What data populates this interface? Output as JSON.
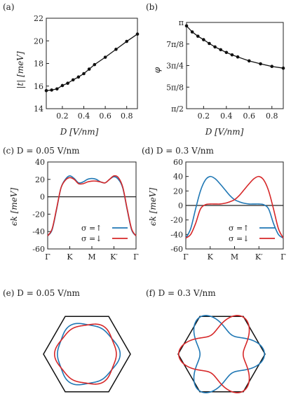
{
  "chart_data": [
    {
      "panel": "(a)",
      "type": "line",
      "title": "",
      "xlabel": "D [V/nm]",
      "ylabel": "|t| [meV]",
      "xlim": [
        0.05,
        0.9
      ],
      "ylim": [
        14,
        22
      ],
      "xticks": [
        "0.2",
        "0.4",
        "0.6",
        "0.8"
      ],
      "yticks": [
        "14",
        "16",
        "18",
        "20",
        "22"
      ],
      "grid": false,
      "x": [
        0.05,
        0.1,
        0.15,
        0.2,
        0.25,
        0.3,
        0.35,
        0.4,
        0.45,
        0.5,
        0.6,
        0.7,
        0.8,
        0.9
      ],
      "y": [
        15.6,
        15.65,
        15.75,
        16.05,
        16.25,
        16.55,
        16.8,
        17.1,
        17.5,
        17.9,
        18.55,
        19.25,
        19.95,
        20.6
      ]
    },
    {
      "panel": "(b)",
      "type": "line",
      "title": "",
      "xlabel": "D [V/nm]",
      "ylabel": "φ",
      "xlim": [
        0.05,
        0.9
      ],
      "ylim": [
        0.5,
        1.0
      ],
      "yunit": "π",
      "xticks": [
        "0.2",
        "0.4",
        "0.6",
        "0.8"
      ],
      "yticks": [
        "π/2",
        "5π/8",
        "3π/4",
        "7π/8",
        "π"
      ],
      "grid": false,
      "x": [
        0.05,
        0.1,
        0.15,
        0.2,
        0.25,
        0.3,
        0.35,
        0.4,
        0.45,
        0.5,
        0.6,
        0.7,
        0.8,
        0.9
      ],
      "y": [
        0.98,
        0.945,
        0.92,
        0.9,
        0.878,
        0.858,
        0.842,
        0.826,
        0.812,
        0.8,
        0.777,
        0.76,
        0.745,
        0.735
      ]
    },
    {
      "panel": "(c)",
      "type": "line",
      "title": "D = 0.05 V/nm",
      "xlabel": "",
      "ylabel": "ϵk [meV]",
      "ylim": [
        -60,
        40
      ],
      "xticks": [
        "Γ",
        "K",
        "M",
        "K′",
        "Γ"
      ],
      "yticks": [
        "-60",
        "-40",
        "-20",
        "0",
        "20",
        "40"
      ],
      "k_path": [
        0,
        0.25,
        0.5,
        0.75,
        1
      ],
      "legend": [
        "σ =↑",
        "σ =↓"
      ],
      "legend_position": "bottom-right",
      "series": [
        {
          "name": "σ =↑",
          "color": "#1f77b4",
          "x": [
            0,
            0.05,
            0.1,
            0.15,
            0.2,
            0.25,
            0.3,
            0.35,
            0.4,
            0.45,
            0.5,
            0.55,
            0.6,
            0.65,
            0.7,
            0.75,
            0.8,
            0.85,
            0.9,
            0.95,
            1
          ],
          "y": [
            -45,
            -38,
            -15,
            10,
            20,
            24,
            21,
            16,
            17,
            20,
            21,
            20,
            17,
            16,
            20,
            23,
            20,
            10,
            -15,
            -38,
            -45
          ]
        },
        {
          "name": "σ =↓",
          "color": "#d62728",
          "x": [
            0,
            0.05,
            0.1,
            0.15,
            0.2,
            0.25,
            0.3,
            0.35,
            0.4,
            0.45,
            0.5,
            0.55,
            0.6,
            0.65,
            0.7,
            0.75,
            0.8,
            0.85,
            0.9,
            0.95,
            1
          ],
          "y": [
            -45,
            -37,
            -14,
            10,
            19,
            22,
            20,
            15,
            15,
            17,
            18,
            18,
            17,
            16,
            20,
            24,
            22,
            11,
            -14,
            -37,
            -45
          ]
        }
      ]
    },
    {
      "panel": "(d)",
      "type": "line",
      "title": "D = 0.3 V/nm",
      "xlabel": "",
      "ylabel": "ϵk [meV]",
      "ylim": [
        -60,
        60
      ],
      "xticks": [
        "Γ",
        "K",
        "M",
        "K′",
        "Γ"
      ],
      "yticks": [
        "-60",
        "-40",
        "-20",
        "0",
        "20",
        "40",
        "60"
      ],
      "k_path": [
        0,
        0.25,
        0.5,
        0.75,
        1
      ],
      "legend": [
        "σ =↑",
        "σ =↓"
      ],
      "legend_position": "bottom-right",
      "series": [
        {
          "name": "σ =↑",
          "color": "#1f77b4",
          "x": [
            0,
            0.05,
            0.1,
            0.15,
            0.2,
            0.25,
            0.3,
            0.35,
            0.4,
            0.45,
            0.5,
            0.55,
            0.6,
            0.65,
            0.7,
            0.75,
            0.8,
            0.85,
            0.9,
            0.95,
            1
          ],
          "y": [
            -45,
            -32,
            -5,
            20,
            35,
            40,
            37,
            30,
            22,
            14,
            8,
            5,
            3,
            2,
            2,
            2,
            1,
            -5,
            -25,
            -40,
            -45
          ]
        },
        {
          "name": "σ =↓",
          "color": "#d62728",
          "x": [
            0,
            0.05,
            0.1,
            0.15,
            0.2,
            0.25,
            0.3,
            0.35,
            0.4,
            0.45,
            0.5,
            0.55,
            0.6,
            0.65,
            0.7,
            0.75,
            0.8,
            0.85,
            0.9,
            0.95,
            1
          ],
          "y": [
            -45,
            -40,
            -25,
            -5,
            1,
            2,
            2,
            2,
            3,
            5,
            8,
            14,
            22,
            30,
            37,
            40,
            35,
            20,
            -5,
            -32,
            -45
          ]
        }
      ]
    },
    {
      "panel": "(e)",
      "type": "contour",
      "title": "D = 0.05 V/nm",
      "series": [
        {
          "name": "σ =↑",
          "color": "#1f77b4",
          "radius": 0.7,
          "distortion": 0.06,
          "rotation_deg": 0
        },
        {
          "name": "σ =↓",
          "color": "#d62728",
          "radius": 0.69,
          "distortion": 0.05,
          "rotation_deg": 60
        }
      ]
    },
    {
      "panel": "(f)",
      "type": "contour",
      "title": "D = 0.3 V/nm",
      "series": [
        {
          "name": "σ =↑",
          "color": "#1f77b4",
          "radius": 0.72,
          "distortion": 0.34,
          "rotation_deg": 0
        },
        {
          "name": "σ =↓",
          "color": "#d62728",
          "radius": 0.72,
          "distortion": 0.34,
          "rotation_deg": 60
        }
      ]
    }
  ]
}
